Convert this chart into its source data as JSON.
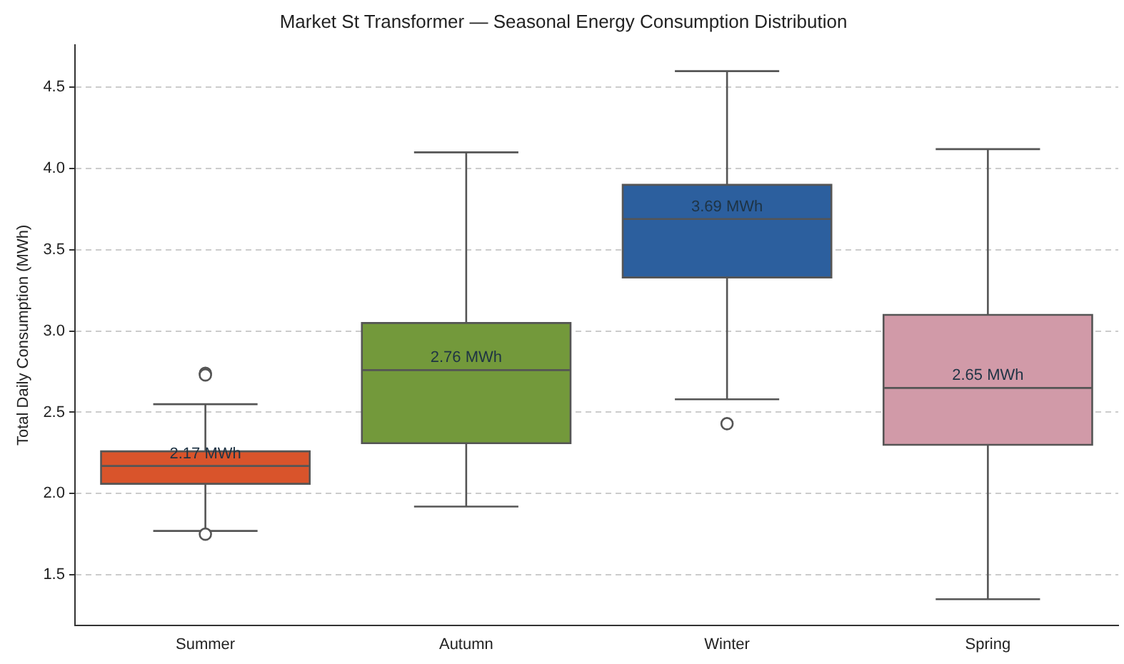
{
  "chart_data": {
    "type": "box",
    "title": "Market St Transformer — Seasonal Energy Consumption Distribution",
    "ylabel": "Total Daily Consumption (MWh)",
    "categories": [
      "Summer",
      "Autumn",
      "Winter",
      "Spring"
    ],
    "colors": [
      "#d9542b",
      "#73993b",
      "#2c5f9e",
      "#d19aa8"
    ],
    "boxes": [
      {
        "low": 1.77,
        "q1": 2.06,
        "q3": 2.26,
        "median": 2.17,
        "high": 2.55,
        "outliers": [
          2.74,
          2.73,
          1.75
        ]
      },
      {
        "low": 1.92,
        "q1": 2.31,
        "q3": 3.05,
        "median": 2.76,
        "high": 4.1
      },
      {
        "low": 2.58,
        "q1": 3.33,
        "q3": 3.9,
        "median": 3.69,
        "high": 4.6,
        "outliers": [
          2.43
        ]
      },
      {
        "low": 1.35,
        "q1": 2.3,
        "q3": 3.1,
        "median": 2.65,
        "high": 4.12
      }
    ],
    "annotations": [
      {
        "text": "2.17 MWh",
        "x": "Summer",
        "y": 2.17
      },
      {
        "text": "2.76 MWh",
        "x": "Autumn",
        "y": 2.76
      },
      {
        "text": "3.69 MWh",
        "x": "Winter",
        "y": 3.69
      },
      {
        "text": "2.65 MWh",
        "x": "Spring",
        "y": 2.65
      }
    ],
    "ylim": [
      1.19,
      4.76
    ],
    "yticks": [
      1.5,
      {
        "value": 2,
        "label": "2.0"
      },
      2.5,
      {
        "value": 3,
        "label": "3.0"
      },
      3.5,
      {
        "value": 4,
        "label": "4.0"
      },
      4.5
    ],
    "grid": "y",
    "legend": false
  }
}
